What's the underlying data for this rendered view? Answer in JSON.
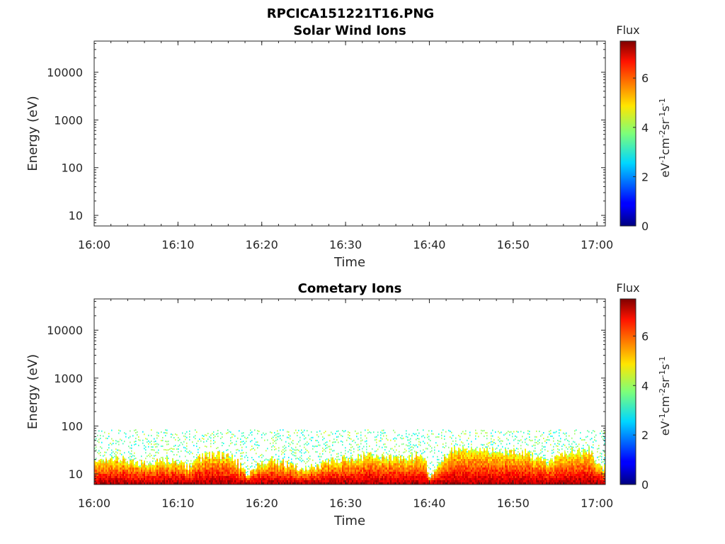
{
  "figure": {
    "title": "RPCICA151221T16.PNG"
  },
  "chart_data": [
    {
      "type": "heatmap",
      "title": "Solar Wind Ions",
      "xlabel": "Time",
      "ylabel": "Energy (eV)",
      "x_ticks": [
        "16:00",
        "16:10",
        "16:20",
        "16:30",
        "16:40",
        "16:50",
        "17:00"
      ],
      "x_range": [
        "16:00",
        "17:01"
      ],
      "y_scale": "log",
      "y_ticks": [
        "10",
        "100",
        "1000",
        "10000"
      ],
      "y_range": [
        6,
        45000
      ],
      "colorbar": {
        "title": "Flux",
        "label": "eV-1cm-2sr-1s-1",
        "ticks": [
          "0",
          "2",
          "4",
          "6"
        ],
        "range": [
          0,
          7.5
        ],
        "colormap": "jet"
      },
      "data_present": false,
      "profile_time": [],
      "profile_top_energy": []
    },
    {
      "type": "heatmap",
      "title": "Cometary Ions",
      "xlabel": "Time",
      "ylabel": "Energy (eV)",
      "x_ticks": [
        "16:00",
        "16:10",
        "16:20",
        "16:30",
        "16:40",
        "16:50",
        "17:00"
      ],
      "x_range": [
        "16:00",
        "17:01"
      ],
      "y_scale": "log",
      "y_ticks": [
        "10",
        "100",
        "1000",
        "10000"
      ],
      "y_range": [
        6,
        45000
      ],
      "colorbar": {
        "title": "Flux",
        "label": "eV-1cm-2sr-1s-1",
        "ticks": [
          "0",
          "2",
          "4",
          "6"
        ],
        "range": [
          0,
          7.5
        ],
        "colormap": "jet"
      },
      "data_present": true,
      "sparse_cutoff_energy": 80,
      "profile_time": [
        "16:00",
        "16:03",
        "16:06",
        "16:09",
        "16:11",
        "16:13",
        "16:16",
        "16:18",
        "16:21",
        "16:25",
        "16:28",
        "16:30",
        "16:33",
        "16:36",
        "16:39",
        "16:40",
        "16:43",
        "16:46",
        "16:49",
        "16:51",
        "16:54",
        "16:57",
        "16:59",
        "17:00"
      ],
      "profile_top_energy": [
        18,
        22,
        16,
        20,
        14,
        24,
        26,
        10,
        20,
        12,
        18,
        22,
        24,
        20,
        26,
        8,
        34,
        30,
        28,
        30,
        16,
        30,
        32,
        14
      ]
    }
  ]
}
